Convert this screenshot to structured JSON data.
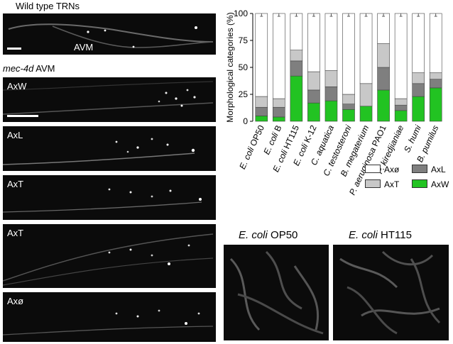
{
  "figure": {
    "top_title": "Wild type TRNs",
    "avm_label": "AVM",
    "section_title_italic": "mec-4d",
    "section_title_rest": " AVM",
    "panels": [
      {
        "label": "AxW"
      },
      {
        "label": "AxL"
      },
      {
        "label": "AxT"
      },
      {
        "label": "AxT"
      },
      {
        "label": "Axø"
      }
    ],
    "plate_left_italic": "E. coli",
    "plate_left_rest": " OP50",
    "plate_right_italic": "E. coli",
    "plate_right_rest": " HT115"
  },
  "colors": {
    "AxW": "#22c322",
    "AxL": "#7f7f7f",
    "AxT": "#c8c8c8",
    "Axnull": "#ffffff"
  },
  "chart_data": {
    "type": "bar",
    "stacked": true,
    "ylabel": "Morphological categories (%)",
    "ylim": [
      0,
      100
    ],
    "yticks": [
      "0",
      "25",
      "50",
      "75",
      "100"
    ],
    "categories": [
      {
        "italic": "E. coli",
        "rest": " OP50"
      },
      {
        "italic": "E. coli",
        "rest": " B"
      },
      {
        "italic": "E. coli",
        "rest": " HT115"
      },
      {
        "italic": "E. coli",
        "rest": " K-12"
      },
      {
        "italic": "C. aquatica",
        "rest": ""
      },
      {
        "italic": "C. testosteroni",
        "rest": ""
      },
      {
        "italic": "B. megaterium",
        "rest": ""
      },
      {
        "italic": "P. aeruginosa",
        "rest": " PAO1"
      },
      {
        "italic": "P. kiredjianiae",
        "rest": ""
      },
      {
        "italic": "S. humi",
        "rest": ""
      },
      {
        "italic": "B. pumilus",
        "rest": ""
      }
    ],
    "series": [
      {
        "name": "AxW",
        "values": [
          5,
          4,
          42,
          17,
          19,
          11,
          14,
          29,
          10,
          23,
          31
        ]
      },
      {
        "name": "AxL",
        "values": [
          8,
          9,
          14,
          12,
          13,
          5,
          0,
          21,
          5,
          12,
          8
        ]
      },
      {
        "name": "AxT",
        "values": [
          10,
          8,
          10,
          17,
          15,
          9,
          21,
          22,
          6,
          10,
          6
        ]
      },
      {
        "name": "Axø",
        "values": [
          77,
          79,
          34,
          54,
          53,
          75,
          65,
          28,
          79,
          55,
          55
        ]
      }
    ],
    "legend": [
      {
        "name": "Axø",
        "color_key": "Axnull"
      },
      {
        "name": "AxL",
        "color_key": "AxL"
      },
      {
        "name": "AxT",
        "color_key": "AxT"
      },
      {
        "name": "AxW",
        "color_key": "AxW"
      }
    ],
    "legend_placement": "bottom-right"
  }
}
